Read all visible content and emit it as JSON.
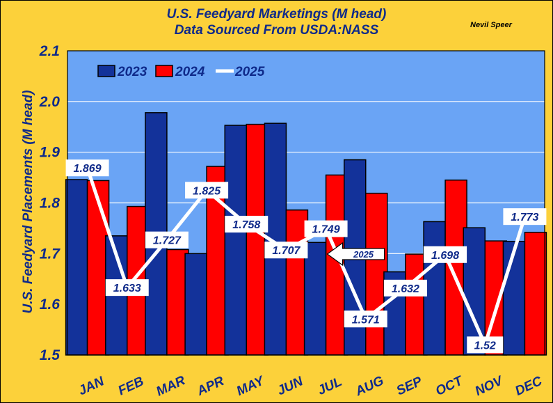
{
  "chart_data": {
    "type": "bar",
    "title": "U.S. Feedyard Marketings (M head)",
    "subtitle": "Data Sourced From USDA:NASS",
    "credit": "Nevil Speer",
    "ylabel": "U.S. Feedyard Placements (M head)",
    "xlabel": "",
    "ylim": [
      1.5,
      2.1
    ],
    "yticks": [
      "1.5",
      "1.6",
      "1.7",
      "1.8",
      "1.9",
      "2.0",
      "2.1"
    ],
    "categories": [
      "JAN",
      "FEB",
      "MAR",
      "APR",
      "MAY",
      "JUN",
      "JUL",
      "AUG",
      "SEP",
      "OCT",
      "NOV",
      "DEC"
    ],
    "series": [
      {
        "name": "2023",
        "type": "bar",
        "color": "#13329a",
        "values": [
          1.846,
          1.735,
          1.978,
          1.7,
          1.953,
          1.957,
          1.722,
          1.885,
          1.664,
          1.763,
          1.751,
          1.724
        ]
      },
      {
        "name": "2024",
        "type": "bar",
        "color": "#ff0000",
        "values": [
          1.844,
          1.793,
          1.708,
          1.872,
          1.955,
          1.786,
          1.855,
          1.819,
          1.699,
          1.845,
          1.725,
          1.742
        ]
      },
      {
        "name": "2025",
        "type": "line",
        "color": "#ffffff",
        "values": [
          1.869,
          1.633,
          1.727,
          1.825,
          1.758,
          1.707,
          1.749,
          1.571,
          1.632,
          1.698,
          1.52,
          1.773
        ],
        "labels": [
          "1.869",
          "1.633",
          "1.727",
          "1.825",
          "1.758",
          "1.707",
          "1.749",
          "1.571",
          "1.632",
          "1.698",
          "1.52",
          "1.773"
        ]
      }
    ],
    "legend_position": "top-left",
    "annotation": {
      "text": "2025",
      "points_to": "JUL"
    },
    "colors": {
      "background": "#fcd13a",
      "plot_background": "#6aa4f5",
      "text": "#0f2a8a"
    }
  }
}
